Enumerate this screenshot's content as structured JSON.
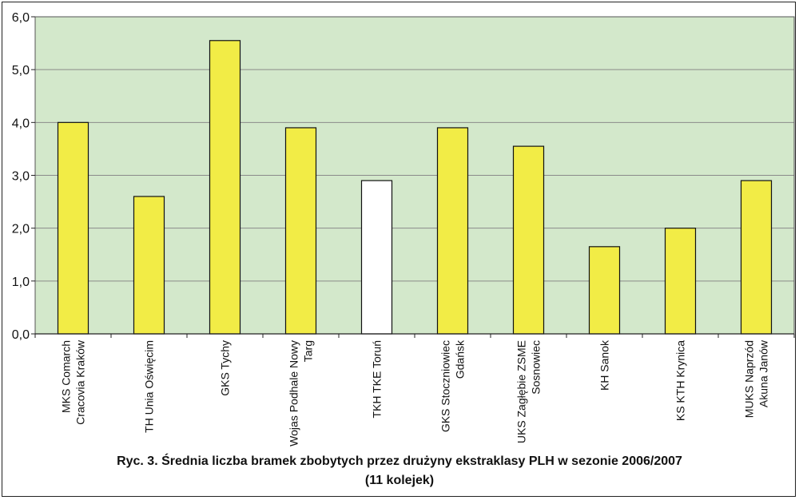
{
  "chart_data": {
    "type": "bar",
    "categories": [
      "MKS Comarch Cracovia Kraków",
      "TH Unia Oświęcim",
      "GKS Tychy",
      "Wojas Podhale Nowy Targ",
      "TKH TKE Toruń",
      "GKS Stoczniowiec Gdańsk",
      "UKS Zagłębie ZSME Sosnowiec",
      "KH Sanok",
      "KS KTH Krynica",
      "MUKS Naprzód Akuna Janów"
    ],
    "category_label_lines": [
      [
        "MKS Comarch",
        "Cracovia Kraków"
      ],
      [
        "TH Unia Oświęcim"
      ],
      [
        "GKS Tychy"
      ],
      [
        "Wojas Podhale Nowy",
        "Targ"
      ],
      [
        "TKH TKE Toruń"
      ],
      [
        "GKS Stoczniowiec",
        "Gdańsk"
      ],
      [
        "UKS Zagłębie ZSME",
        "Sosnowiec"
      ],
      [
        "KH Sanok"
      ],
      [
        "KS KTH Krynica"
      ],
      [
        "MUKS Naprzód",
        "Akuna Janów"
      ]
    ],
    "values": [
      4.0,
      2.6,
      5.55,
      3.9,
      2.9,
      3.9,
      3.55,
      1.65,
      2.0,
      2.9
    ],
    "bar_colors": [
      "#f2ec46",
      "#f2ec46",
      "#f2ec46",
      "#f2ec46",
      "#ffffff",
      "#f2ec46",
      "#f2ec46",
      "#f2ec46",
      "#f2ec46",
      "#f2ec46"
    ],
    "ylim": [
      0,
      6
    ],
    "yticks": [
      "0,0",
      "1,0",
      "2,0",
      "3,0",
      "4,0",
      "5,0",
      "6,0"
    ],
    "grid": true,
    "plot_background": "#d3e8cb",
    "title": "",
    "xlabel": "",
    "ylabel": ""
  },
  "caption": {
    "line1": "Ryc. 3. Średnia liczba bramek zbobytych przez drużyny ekstraklasy PLH w sezonie 2006/2007",
    "line2": "(11 kolejek)"
  }
}
